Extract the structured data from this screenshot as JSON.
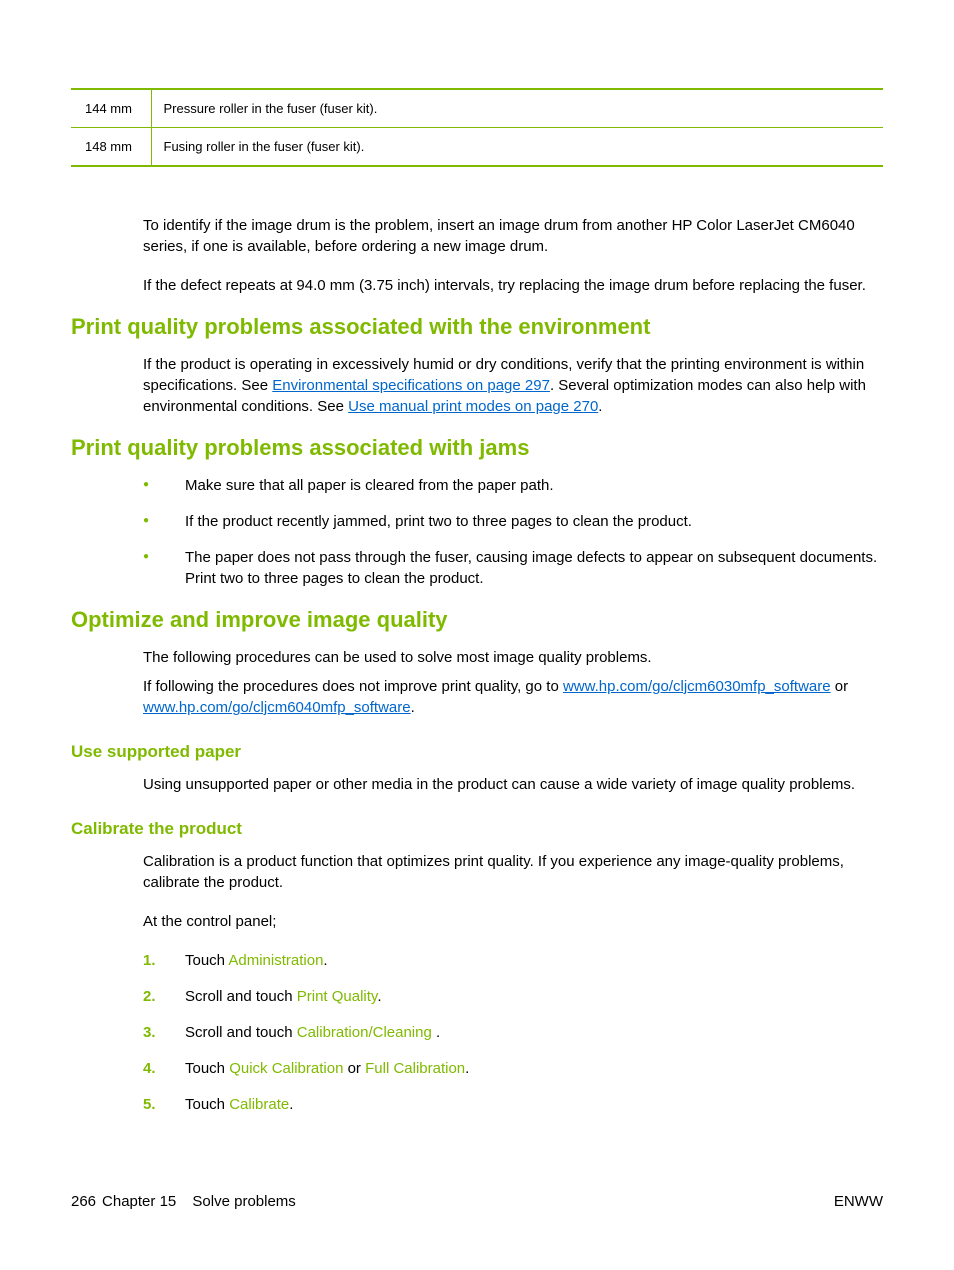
{
  "table": {
    "rows": [
      {
        "measurement": "144 mm",
        "description": "Pressure roller in the fuser (fuser kit)."
      },
      {
        "measurement": "148 mm",
        "description": "Fusing roller in the fuser (fuser kit)."
      }
    ]
  },
  "intro": {
    "p1": "To identify if the image drum is the problem, insert an image drum from another HP Color LaserJet CM6040 series, if one is available, before ordering a new image drum.",
    "p2": "If the defect repeats at 94.0 mm (3.75 inch) intervals, try replacing the image drum before replacing the fuser."
  },
  "env": {
    "heading": "Print quality problems associated with the environment",
    "text_before_link1": "If the product is operating in excessively humid or dry conditions, verify that the printing environment is within specifications. See ",
    "link1": "Environmental specifications on page 297",
    "text_mid": ". Several optimization modes can also help with environmental conditions. See ",
    "link2": "Use manual print modes on page 270",
    "text_after": "."
  },
  "jams": {
    "heading": "Print quality problems associated with jams",
    "items": [
      "Make sure that all paper is cleared from the paper path.",
      "If the product recently jammed, print two to three pages to clean the product.",
      "The paper does not pass through the fuser, causing image defects to appear on subsequent documents. Print two to three pages to clean the product."
    ]
  },
  "optimize": {
    "heading": "Optimize and improve image quality",
    "p1": "The following procedures can be used to solve most image quality problems.",
    "p2_before": "If following the procedures does not improve print quality, go to ",
    "link1": "www.hp.com/go/cljcm6030mfp_software",
    "mid": " or ",
    "link2": "www.hp.com/go/cljcm6040mfp_software",
    "after": "."
  },
  "supported_paper": {
    "heading": "Use supported paper",
    "text": "Using unsupported paper or other media in the product can cause a wide variety of image quality problems."
  },
  "calibrate": {
    "heading": "Calibrate the product",
    "p1": "Calibration is a product function that optimizes print quality. If you experience any image-quality problems, calibrate the product.",
    "p2": "At the control panel;",
    "steps": [
      {
        "before": "Touch ",
        "terms": [
          "Administration"
        ],
        "joins": [],
        "after": "."
      },
      {
        "before": "Scroll and touch ",
        "terms": [
          "Print Quality"
        ],
        "joins": [],
        "after": "."
      },
      {
        "before": "Scroll and touch ",
        "terms": [
          "Calibration/Cleaning"
        ],
        "joins": [],
        "after": " ."
      },
      {
        "before": "Touch ",
        "terms": [
          "Quick Calibration",
          "Full Calibration"
        ],
        "joins": [
          " or "
        ],
        "after": "."
      },
      {
        "before": "Touch ",
        "terms": [
          "Calibrate"
        ],
        "joins": [],
        "after": "."
      }
    ]
  },
  "footer": {
    "page": "266",
    "chapter": "Chapter 15",
    "title": "Solve problems",
    "right": "ENWW"
  },
  "colors": {
    "accent": "#7fba00",
    "link": "#0066cc",
    "text": "#000000",
    "bg": "#ffffff"
  }
}
